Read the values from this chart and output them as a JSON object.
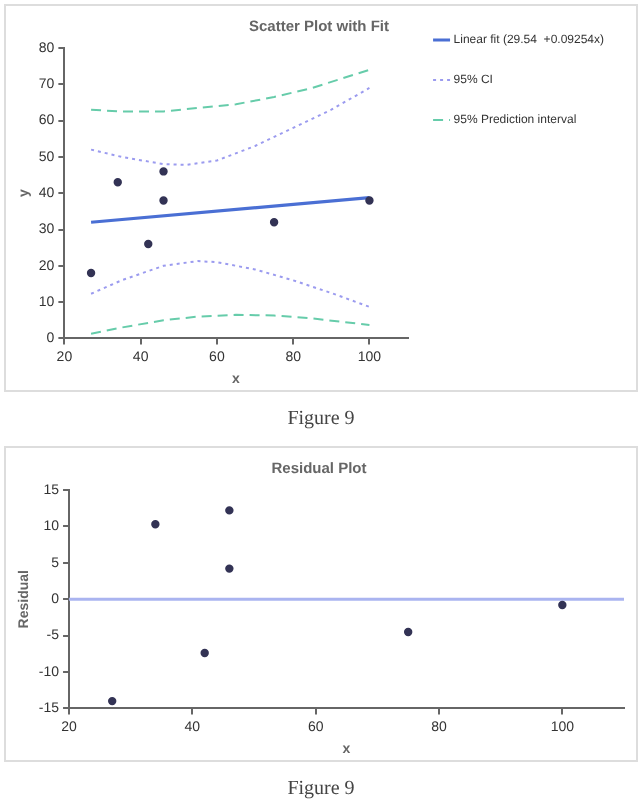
{
  "chart_data": [
    {
      "type": "scatter",
      "title": "Scatter Plot with Fit",
      "xlabel": "x",
      "ylabel": "y",
      "xlim": [
        20,
        110
      ],
      "xticks": [
        20,
        40,
        60,
        80,
        100
      ],
      "ylim": [
        0,
        80
      ],
      "yticks": [
        0,
        10,
        20,
        30,
        40,
        50,
        60,
        70,
        80
      ],
      "grid": false,
      "legend": "right",
      "annotations": [
        "Figure 9"
      ],
      "series": [
        {
          "type": "scatter",
          "color": "#333355",
          "marker": "circle",
          "x": [
            27,
            34,
            42,
            46,
            46,
            75,
            100
          ],
          "values": [
            18,
            43,
            26,
            46,
            38,
            32,
            38
          ]
        },
        {
          "type": "line",
          "name": "Linear fit (29.54  +0.09254x)",
          "color": "#4a6fd4",
          "marker": "none",
          "line_style": "solid",
          "x": [
            27,
            100
          ],
          "values": [
            32,
            38.8
          ]
        },
        {
          "type": "line",
          "name": "95% CI",
          "color": "#9b9bef",
          "marker": "none",
          "line_style": "dotted",
          "x": [
            27,
            35,
            46,
            52,
            60,
            70,
            80,
            90,
            100
          ],
          "values": [
            52,
            50,
            48,
            47.8,
            49,
            53,
            58,
            63,
            69
          ]
        },
        {
          "type": "line",
          "color": "#9b9bef",
          "marker": "none",
          "line_style": "dotted",
          "x": [
            27,
            35,
            46,
            55,
            60,
            70,
            80,
            90,
            100
          ],
          "values": [
            12.3,
            16,
            20,
            21.3,
            21,
            19,
            16,
            12.5,
            8.7
          ]
        },
        {
          "type": "line",
          "name": "95% Prediction interval",
          "color": "#66ccaa",
          "marker": "none",
          "line_style": "dashed",
          "x": [
            27,
            35,
            46,
            55,
            65,
            75,
            85,
            100
          ],
          "values": [
            63,
            62.5,
            62.5,
            63.5,
            64.5,
            66.5,
            69,
            74
          ]
        },
        {
          "type": "line",
          "color": "#66ccaa",
          "marker": "none",
          "line_style": "dashed",
          "x": [
            27,
            35,
            46,
            55,
            65,
            75,
            85,
            100
          ],
          "values": [
            1.3,
            3,
            5,
            6,
            6.5,
            6.3,
            5.5,
            3.7
          ]
        }
      ]
    },
    {
      "type": "scatter",
      "title": "Residual Plot",
      "xlabel": "x",
      "ylabel": "Residual",
      "xlim": [
        20,
        110
      ],
      "xticks": [
        20,
        40,
        60,
        80,
        100
      ],
      "ylim": [
        -15,
        15
      ],
      "yticks": [
        -15,
        -10,
        -5,
        0,
        5,
        10,
        15
      ],
      "grid": false,
      "legend": false,
      "marker": "circle",
      "annotations": [
        "Figure 9"
      ],
      "ref_lines": [
        {
          "axis": "y",
          "value": 0,
          "color": "#aab4f0"
        }
      ],
      "series": [
        {
          "color": "#333355",
          "x": [
            27,
            34,
            42,
            46,
            46,
            75,
            100
          ],
          "values": [
            -14.0,
            10.3,
            -7.4,
            12.2,
            4.2,
            -4.5,
            -0.8
          ]
        }
      ]
    }
  ]
}
